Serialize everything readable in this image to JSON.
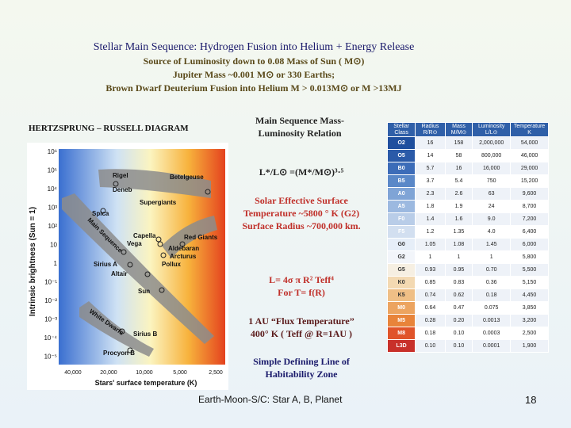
{
  "title": "Stellar Main Sequence:  Hydrogen  Fusion  into  Helium + Energy Release",
  "subtitle_lines": [
    "Source of Luminosity down  to  0.08 Mass of Sun  (  M⊙)",
    "Jupiter Mass ~0.001 M⊙ or 330 Earths;",
    "Brown Dwarf Deuterium  Fusion into Helium  M > 0.013M⊙ or M >13MJ"
  ],
  "hr_diagram": {
    "label": "HERTZSPRUNG – RUSSELL DIAGRAM",
    "y_axis_label": "Intrinsic  brightness  (Sun = 1)",
    "x_axis_label": "Stars' surface temperature (K)",
    "y_ticks": [
      "10⁶",
      "10⁵",
      "10⁴",
      "10³",
      "10²",
      "10",
      "1",
      "10⁻¹",
      "10⁻²",
      "10⁻³",
      "10⁻⁴",
      "10⁻⁵"
    ],
    "x_ticks": [
      "40,000",
      "20,000",
      "10,000",
      "5,000",
      "2,500"
    ],
    "star_labels": [
      "Rigel",
      "Deneb",
      "Betelgeuse",
      "Spica",
      "Supergiants",
      "Red Giants",
      "Capella",
      "Vega",
      "Aldebaran",
      "Arcturus",
      "Pollux",
      "Sirius A",
      "Altair",
      "Sun",
      "Main Sequence",
      "White Dwarfs",
      "Sirius B",
      "Procyon B"
    ]
  },
  "mass_luminosity": {
    "heading": "Main Sequence Mass-Luminosity Relation",
    "formula": "L*/L⊙ =(M*/M⊙)³·⁵"
  },
  "solar_text": "Solar Effective Surface Temperature ~5800 ° K (G2) Surface Radius ~700,000 km.",
  "luminosity_formula": [
    "L= 4σ π R² Teff⁴",
    "For  T= f(R)"
  ],
  "flux_text": [
    "1 AU “Flux Temperature”",
    "400° K ( Teff @ R=1AU )"
  ],
  "habitability_text": "Simple Defining Line of Habitability Zone",
  "footer": "Earth-Moon-S/C: Star A, B, Planet",
  "page_number": "18",
  "table": {
    "headers": [
      "Stellar Class",
      "Radius R/R⊙",
      "Mass M/M⊙",
      "Luminosity L/L⊙",
      "Temperature K"
    ],
    "rows": [
      {
        "cls": "O2",
        "r": "16",
        "m": "158",
        "l": "2,000,000",
        "t": "54,000",
        "color": "#1f4f9e"
      },
      {
        "cls": "O5",
        "r": "14",
        "m": "58",
        "l": "800,000",
        "t": "46,000",
        "color": "#2a5aa8"
      },
      {
        "cls": "B0",
        "r": "5.7",
        "m": "16",
        "l": "16,000",
        "t": "29,000",
        "color": "#3c6cb8"
      },
      {
        "cls": "B5",
        "r": "3.7",
        "m": "5.4",
        "l": "750",
        "t": "15,200",
        "color": "#5a88c8"
      },
      {
        "cls": "A0",
        "r": "2.3",
        "m": "2.6",
        "l": "63",
        "t": "9,600",
        "color": "#7fa4d6"
      },
      {
        "cls": "A5",
        "r": "1.8",
        "m": "1.9",
        "l": "24",
        "t": "8,700",
        "color": "#9cb9e0"
      },
      {
        "cls": "F0",
        "r": "1.4",
        "m": "1.6",
        "l": "9.0",
        "t": "7,200",
        "color": "#b9cde8"
      },
      {
        "cls": "F5",
        "r": "1.2",
        "m": "1.35",
        "l": "4.0",
        "t": "6,400",
        "color": "#d2dff0"
      },
      {
        "cls": "G0",
        "r": "1.05",
        "m": "1.08",
        "l": "1.45",
        "t": "6,000",
        "color": "#e6eef8"
      },
      {
        "cls": "G2",
        "r": "1",
        "m": "1",
        "l": "1",
        "t": "5,800",
        "color": "#f2f5fa"
      },
      {
        "cls": "G5",
        "r": "0.93",
        "m": "0.95",
        "l": "0.70",
        "t": "5,500",
        "color": "#f6efe2"
      },
      {
        "cls": "K0",
        "r": "0.85",
        "m": "0.83",
        "l": "0.36",
        "t": "5,150",
        "color": "#f3d9b2"
      },
      {
        "cls": "K5",
        "r": "0.74",
        "m": "0.62",
        "l": "0.18",
        "t": "4,450",
        "color": "#efbf86"
      },
      {
        "cls": "M0",
        "r": "0.64",
        "m": "0.47",
        "l": "0.075",
        "t": "3,850",
        "color": "#eca460"
      },
      {
        "cls": "M5",
        "r": "0.28",
        "m": "0.20",
        "l": "0.0013",
        "t": "3,200",
        "color": "#e8843a"
      },
      {
        "cls": "M8",
        "r": "0.18",
        "m": "0.10",
        "l": "0.0003",
        "t": "2,500",
        "color": "#e0542a"
      },
      {
        "cls": "L3D",
        "r": "0.10",
        "m": "0.10",
        "l": "0.0001",
        "t": "1,900",
        "color": "#c8302a"
      }
    ]
  }
}
